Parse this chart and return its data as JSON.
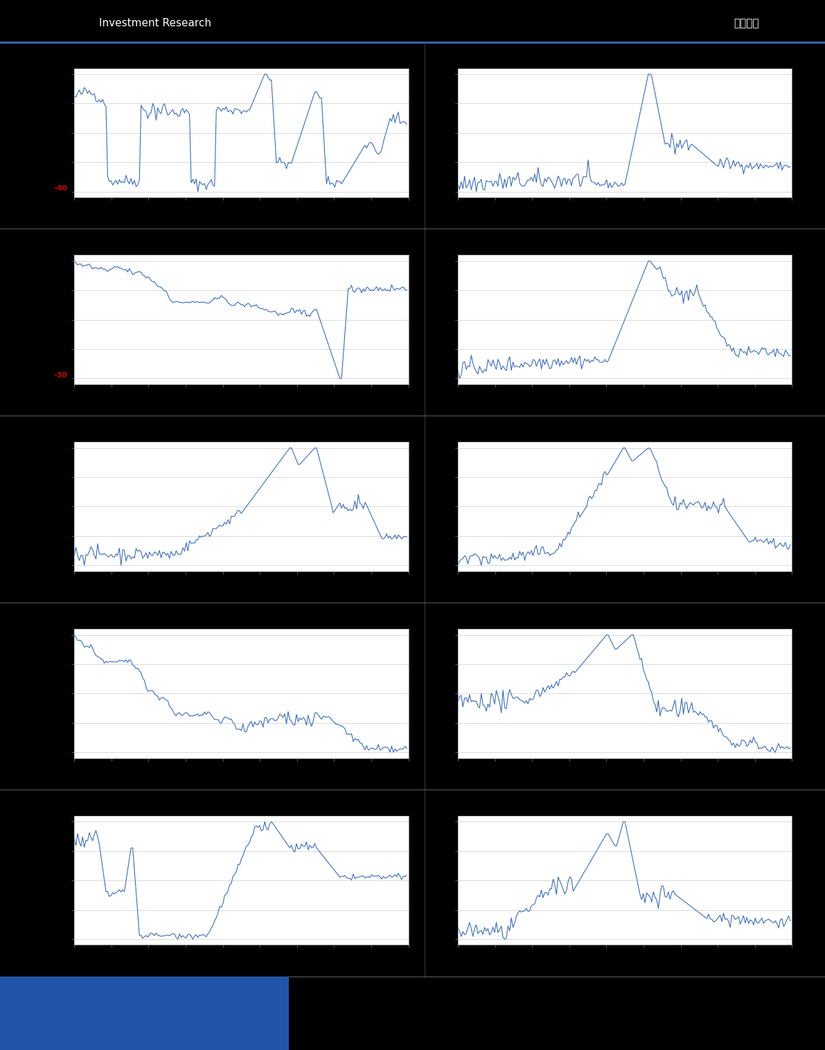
{
  "bg_color": "#000000",
  "line_color": "#3a6bbf",
  "header_line_color": "#3a6bbf",
  "panel_bg": "#ffffff",
  "grid_color": "#cccccc",
  "fig_width": 11.91,
  "fig_height": 15.16,
  "n_rows": 5,
  "n_cols": 2,
  "header_text_left": "Investment Research",
  "header_text_right": "估值局报",
  "footer_blue_color": "#2255aa",
  "red_label_1": "-40",
  "red_label_2": "-30",
  "red_color": "#cc0000"
}
